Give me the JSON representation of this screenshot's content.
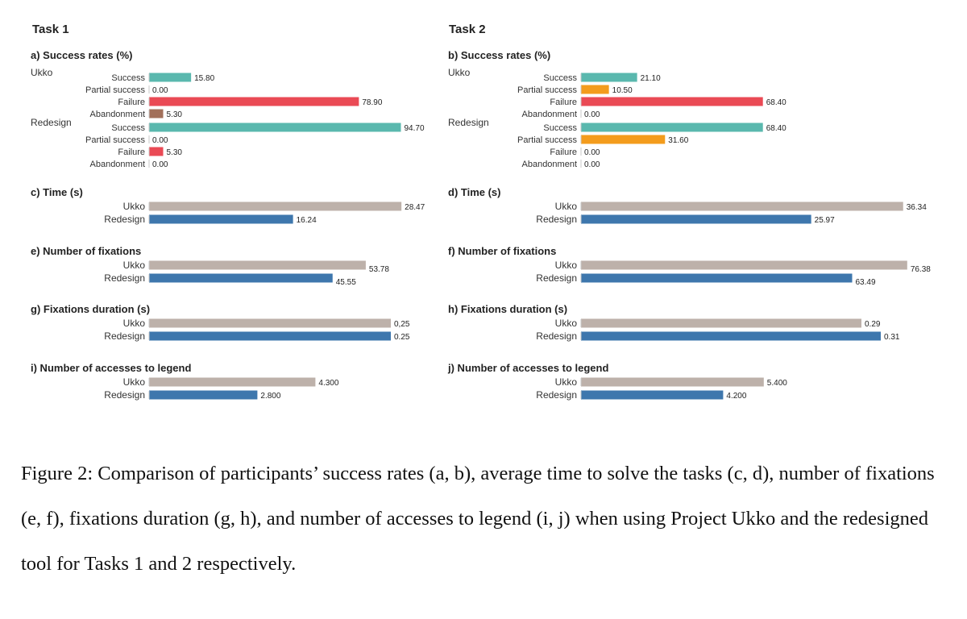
{
  "figure": {
    "caption": "Figure 2: Comparison of participants’ success rates (a, b), average time to solve the tasks (c, d), number of fixations (e, f), fixations duration (g, h), and number of accesses to legend (i, j) when using Project Ukko and the redesigned tool for Tasks 1 and 2 respectively."
  },
  "colors": {
    "Success": "#5ab8ae",
    "Partial success": "#f39c1d",
    "Failure": "#ea4a55",
    "Abandonment": "#a2705a",
    "Ukko": "#bdb1aa",
    "Redesign": "#3e77ad"
  },
  "chart_data": [
    {
      "type": "bar",
      "task": "Task 1",
      "title": "a) Success rates (%)",
      "groups": [
        {
          "name": "Ukko",
          "bars": [
            {
              "label": "Success",
              "value": 15.8,
              "text": "15.80"
            },
            {
              "label": "Partial success",
              "value": 0.0,
              "text": "0.00"
            },
            {
              "label": "Failure",
              "value": 78.9,
              "text": "78.90"
            },
            {
              "label": "Abandonment",
              "value": 5.3,
              "text": "5.30"
            }
          ]
        },
        {
          "name": "Redesign",
          "bars": [
            {
              "label": "Success",
              "value": 94.7,
              "text": "94.70"
            },
            {
              "label": "Partial success",
              "value": 0.0,
              "text": "0.00"
            },
            {
              "label": "Failure",
              "value": 5.3,
              "text": "5.30"
            },
            {
              "label": "Abandonment",
              "value": 0.0,
              "text": "0.00"
            }
          ]
        }
      ]
    },
    {
      "type": "bar",
      "task": "Task 2",
      "title": "b) Success rates (%)",
      "groups": [
        {
          "name": "Ukko",
          "bars": [
            {
              "label": "Success",
              "value": 21.1,
              "text": "21.10"
            },
            {
              "label": "Partial success",
              "value": 10.5,
              "text": "10.50"
            },
            {
              "label": "Failure",
              "value": 68.4,
              "text": "68.40"
            },
            {
              "label": "Abandonment",
              "value": 0.0,
              "text": "0.00"
            }
          ]
        },
        {
          "name": "Redesign",
          "bars": [
            {
              "label": "Success",
              "value": 68.4,
              "text": "68.40"
            },
            {
              "label": "Partial success",
              "value": 31.6,
              "text": "31.60"
            },
            {
              "label": "Failure",
              "value": 0.0,
              "text": "0.00"
            },
            {
              "label": "Abandonment",
              "value": 0.0,
              "text": "0.00"
            }
          ]
        }
      ]
    },
    {
      "type": "bar",
      "title": "c) Time (s)",
      "bars": [
        {
          "label": "Ukko",
          "value": 28.47,
          "text": "28.47"
        },
        {
          "label": "Redesign",
          "value": 16.24,
          "text": "16.24"
        }
      ]
    },
    {
      "type": "bar",
      "title": "d) Time (s)",
      "bars": [
        {
          "label": "Ukko",
          "value": 36.34,
          "text": "36.34"
        },
        {
          "label": "Redesign",
          "value": 25.97,
          "text": "25.97"
        }
      ]
    },
    {
      "type": "bar",
      "title": "e) Number of fixations",
      "bars": [
        {
          "label": "Ukko",
          "value": 53.78,
          "text": "53.78"
        },
        {
          "label": "Redesign",
          "value": 45.55,
          "text": "45.55"
        }
      ]
    },
    {
      "type": "bar",
      "title": "f) Number of fixations",
      "bars": [
        {
          "label": "Ukko",
          "value": 76.38,
          "text": "76.38"
        },
        {
          "label": "Redesign",
          "value": 63.49,
          "text": "63.49"
        }
      ]
    },
    {
      "type": "bar",
      "title": "g) Fixations duration (s)",
      "bars": [
        {
          "label": "Ukko",
          "value": 0.25,
          "text": "0,25"
        },
        {
          "label": "Redesign",
          "value": 0.25,
          "text": "0.25"
        }
      ]
    },
    {
      "type": "bar",
      "title": "h) Fixations duration (s)",
      "bars": [
        {
          "label": "Ukko",
          "value": 0.29,
          "text": "0.29"
        },
        {
          "label": "Redesign",
          "value": 0.31,
          "text": "0.31"
        }
      ]
    },
    {
      "type": "bar",
      "title": "i) Number of accesses to legend",
      "bars": [
        {
          "label": "Ukko",
          "value": 4.3,
          "text": "4.300"
        },
        {
          "label": "Redesign",
          "value": 2.8,
          "text": "2.800"
        }
      ]
    },
    {
      "type": "bar",
      "title": "j) Number of accesses to legend",
      "bars": [
        {
          "label": "Ukko",
          "value": 5.4,
          "text": "5.400"
        },
        {
          "label": "Redesign",
          "value": 4.2,
          "text": "4.200"
        }
      ]
    }
  ]
}
